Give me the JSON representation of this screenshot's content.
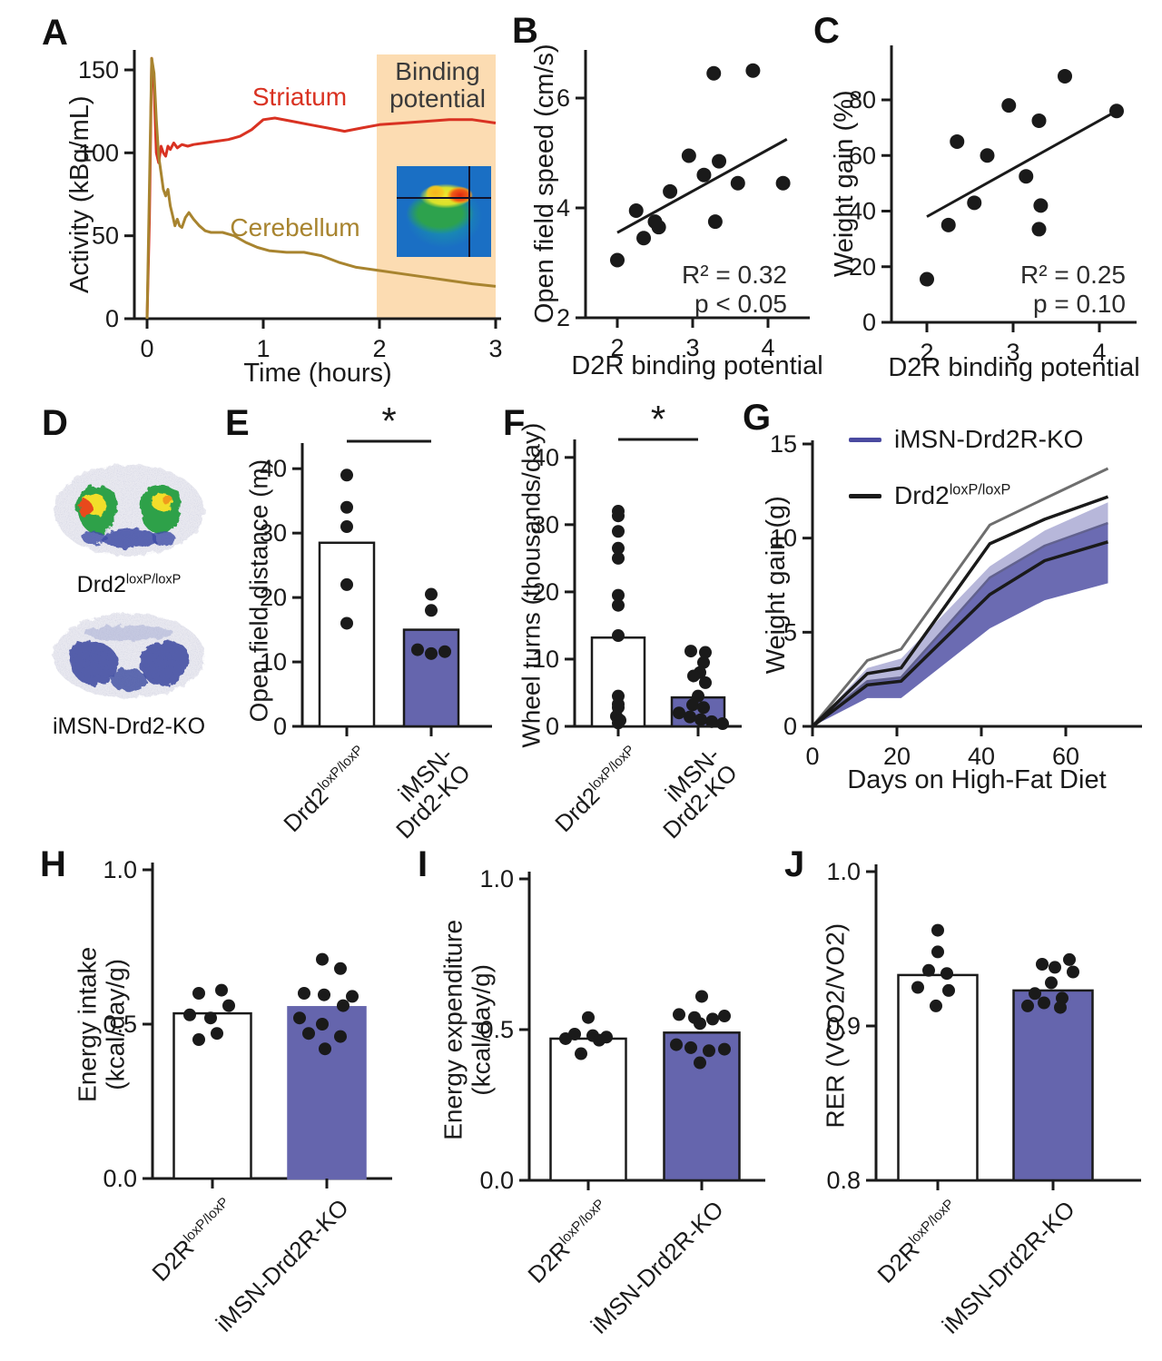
{
  "figure": {
    "background": "#ffffff",
    "colors": {
      "purple": "#6565ad",
      "light_purple": "#b7b7da",
      "orange_band": "#fcdcb2",
      "red": "#d93222",
      "olive": "#a8842f",
      "ink": "#1a1a1a"
    },
    "panels": {
      "A": {
        "letter": "A"
      },
      "B": {
        "letter": "B"
      },
      "C": {
        "letter": "C"
      },
      "D": {
        "letter": "D",
        "images": [
          {
            "name": "autoradiograph-control",
            "label": {
              "base": "Drd2",
              "sup": "loxP/loxP"
            }
          },
          {
            "name": "autoradiograph-ko",
            "label": {
              "text": "iMSN-Drd2-KO"
            }
          }
        ]
      },
      "E": {
        "letter": "E"
      },
      "F": {
        "letter": "F"
      },
      "G": {
        "letter": "G"
      },
      "H": {
        "letter": "H"
      },
      "I": {
        "letter": "I"
      },
      "J": {
        "letter": "J"
      }
    }
  },
  "chart_data": [
    {
      "panel": "A",
      "type": "line",
      "xlabel": "Time (hours)",
      "ylabel": "Activity (kBq/mL)",
      "xlim": [
        0,
        3
      ],
      "ylim": [
        0,
        157
      ],
      "xticks": [
        0,
        1,
        2,
        3
      ],
      "yticks": [
        0,
        50,
        100,
        150
      ],
      "shaded_region": {
        "x0": 2,
        "x1": 3,
        "label_lines": [
          "Binding",
          "potential"
        ],
        "color": "#fcdcb2"
      },
      "series": [
        {
          "name": "Striatum",
          "color": "#d93222",
          "label_xy": [
            290,
            106
          ],
          "x": [
            0,
            0.02,
            0.04,
            0.06,
            0.08,
            0.1,
            0.12,
            0.14,
            0.16,
            0.18,
            0.2,
            0.23,
            0.26,
            0.3,
            0.35,
            0.4,
            0.5,
            0.6,
            0.7,
            0.8,
            0.9,
            1.0,
            1.1,
            1.25,
            1.4,
            1.55,
            1.7,
            1.85,
            2.0,
            2.2,
            2.4,
            2.6,
            2.8,
            3.0
          ],
          "y": [
            0,
            60,
            157,
            140,
            100,
            94,
            104,
            100,
            98,
            104,
            102,
            106,
            103,
            105,
            104,
            105,
            106,
            107,
            108,
            110,
            114,
            120,
            121,
            119,
            117,
            115,
            113,
            115,
            117,
            118,
            119,
            120,
            120,
            118
          ]
        },
        {
          "name": "Cerebellum",
          "color": "#a8842f",
          "label_xy": [
            285,
            250
          ],
          "x": [
            0,
            0.02,
            0.04,
            0.06,
            0.08,
            0.1,
            0.12,
            0.14,
            0.16,
            0.18,
            0.2,
            0.22,
            0.24,
            0.26,
            0.28,
            0.3,
            0.33,
            0.36,
            0.4,
            0.45,
            0.5,
            0.55,
            0.65,
            0.75,
            0.85,
            0.95,
            1.05,
            1.2,
            1.35,
            1.5,
            1.65,
            1.8,
            2.0,
            2.2,
            2.4,
            2.6,
            2.8,
            3.0
          ],
          "y": [
            0,
            80,
            157,
            148,
            120,
            98,
            88,
            78,
            74,
            78,
            68,
            62,
            56,
            60,
            56,
            55,
            61,
            64,
            60,
            56,
            53,
            52,
            52,
            50,
            46,
            43,
            41,
            40,
            40,
            38,
            34,
            31,
            29,
            27,
            25,
            23,
            21,
            19.5
          ]
        }
      ],
      "inset": "pet-scan-heatmap"
    },
    {
      "panel": "B",
      "type": "scatter",
      "xlabel": "D2R binding potential",
      "ylabel": "Open field speed (cm/s)",
      "xticks": [
        2,
        3,
        4
      ],
      "yticks": [
        2,
        4,
        6
      ],
      "xlim": [
        1.8,
        4.4
      ],
      "ylim": [
        2,
        6.8
      ],
      "points": [
        [
          2.0,
          3.05
        ],
        [
          2.25,
          3.95
        ],
        [
          2.35,
          3.45
        ],
        [
          2.5,
          3.75
        ],
        [
          2.55,
          3.65
        ],
        [
          2.7,
          4.3
        ],
        [
          2.95,
          4.95
        ],
        [
          3.15,
          4.6
        ],
        [
          3.28,
          6.45
        ],
        [
          3.35,
          4.85
        ],
        [
          3.3,
          3.75
        ],
        [
          3.6,
          4.45
        ],
        [
          3.8,
          6.5
        ],
        [
          4.2,
          4.45
        ]
      ],
      "trendline": {
        "x1": 2.0,
        "y1": 3.55,
        "x2": 4.25,
        "y2": 5.25
      },
      "annotation": [
        "R² = 0.32",
        "p < 0.05"
      ]
    },
    {
      "panel": "C",
      "type": "scatter",
      "xlabel": "D2R binding potential",
      "ylabel": "Weight gain (%)",
      "xticks": [
        2,
        3,
        4
      ],
      "yticks": [
        0,
        20,
        40,
        60,
        80
      ],
      "xlim": [
        1.8,
        4.4
      ],
      "ylim": [
        0,
        95
      ],
      "points": [
        [
          2.0,
          15.5
        ],
        [
          2.25,
          35
        ],
        [
          2.35,
          65
        ],
        [
          2.55,
          43
        ],
        [
          2.7,
          60
        ],
        [
          2.95,
          78
        ],
        [
          3.15,
          52.5
        ],
        [
          3.3,
          72.5
        ],
        [
          3.32,
          42
        ],
        [
          3.3,
          33.5
        ],
        [
          3.6,
          88.5
        ],
        [
          4.2,
          76
        ]
      ],
      "trendline": {
        "x1": 2.0,
        "y1": 38,
        "x2": 4.2,
        "y2": 76
      },
      "annotation": [
        "R² = 0.25",
        "p = 0.10"
      ]
    },
    {
      "panel": "E",
      "type": "bar",
      "ylabel": "Open field distance (m)",
      "yticks": [
        0,
        10,
        20,
        30,
        40
      ],
      "ylim": [
        0,
        42
      ],
      "significance": "*",
      "groups": [
        {
          "label": {
            "base": "Drd2",
            "sup": "loxP/loxP"
          },
          "bar": 28.5,
          "fill": "#ffffff",
          "points": [
            39,
            34,
            31,
            22,
            16
          ],
          "jitter": [
            0,
            0,
            0,
            0,
            0
          ]
        },
        {
          "label": {
            "lines": [
              "iMSN-",
              "Drd2-KO"
            ]
          },
          "bar": 15,
          "fill": "#6565ad",
          "points": [
            20.5,
            18,
            11.9,
            11.3,
            11.6
          ],
          "jitter": [
            0,
            0,
            -15,
            0,
            15
          ]
        }
      ]
    },
    {
      "panel": "F",
      "type": "bar",
      "ylabel": "Wheel turns (thousands/day)",
      "yticks": [
        0,
        10,
        20,
        30,
        40
      ],
      "ylim": [
        0,
        42
      ],
      "significance": "*",
      "groups": [
        {
          "label": {
            "base": "Drd2",
            "sup": "loxP/loxP"
          },
          "bar": 13.2,
          "fill": "#ffffff",
          "points": [
            32,
            31.3,
            29,
            26.5,
            25,
            19.5,
            18,
            13.5,
            4.5,
            3.3,
            2.8,
            1.5,
            0.9,
            0.5
          ],
          "jitter": [
            0,
            0,
            0,
            0,
            0,
            0,
            0,
            0,
            0,
            0,
            0,
            -2,
            2,
            0
          ]
        },
        {
          "label": {
            "lines": [
              "iMSN-",
              "Drd2-KO"
            ]
          },
          "bar": 4.3,
          "fill": "#6565ad",
          "points": [
            11.2,
            11,
            9.5,
            8,
            7.5,
            6.5,
            4.5,
            3.2,
            2.8,
            2.0,
            1.4,
            1.0,
            0.7,
            0.4
          ],
          "jitter": [
            -8,
            8,
            6,
            2,
            -5,
            8,
            0,
            -6,
            6,
            -21,
            -9,
            3,
            15,
            27
          ]
        }
      ]
    },
    {
      "panel": "G",
      "type": "area-line",
      "xlabel": "Days on High-Fat Diet",
      "ylabel": "Weight gain (g)",
      "xticks": [
        0,
        20,
        40,
        60
      ],
      "yticks": [
        0,
        5,
        10,
        15
      ],
      "xlim": [
        0,
        77
      ],
      "ylim": [
        0,
        15
      ],
      "x": [
        0,
        13,
        21,
        42,
        55,
        70
      ],
      "series": [
        {
          "name": "iMSN-Drd2R-KO",
          "legend_color": "#4a4aa0",
          "mean_color": "#1a1a1a",
          "band_color": "#6b6bb2",
          "mean": [
            0,
            2.2,
            2.4,
            7.0,
            8.8,
            9.8
          ],
          "upper": [
            0,
            3.1,
            3.6,
            8.5,
            10.4,
            11.9
          ],
          "lower": [
            0,
            1.5,
            1.5,
            5.2,
            6.7,
            7.6
          ]
        },
        {
          "name_label": {
            "base": "Drd2",
            "sup": "loxP/loxP"
          },
          "legend_color": "#1a1a1a",
          "mean_color": "#1a1a1a",
          "edge_color": "#6e6e6e",
          "mean": [
            0,
            2.8,
            3.1,
            9.7,
            11.0,
            12.2
          ],
          "upper": [
            0,
            3.5,
            4.1,
            10.7,
            12.1,
            13.7
          ],
          "lower": [
            0,
            2.4,
            2.6,
            7.9,
            9.6,
            10.8
          ]
        }
      ],
      "overlap_color": "#b7b7da",
      "legend_position": "top-left"
    },
    {
      "panel": "H",
      "type": "bar",
      "ylabel_lines": [
        "Energy intake",
        "(kcal/day/g)"
      ],
      "yticks": [
        0,
        0.5,
        1
      ],
      "ytick_labels": [
        "0.0",
        "0.5",
        "1.0"
      ],
      "ylim": [
        0,
        1
      ],
      "groups": [
        {
          "label": {
            "base": "D2R",
            "sup": "loxP/loxP"
          },
          "bar": 0.535,
          "fill": "#ffffff",
          "points": [
            0.6,
            0.61,
            0.56,
            0.53,
            0.52,
            0.47,
            0.45
          ],
          "jitter": [
            -15,
            10,
            18,
            -25,
            -2,
            5,
            -15
          ]
        },
        {
          "label": {
            "text": "iMSN-Drd2R-KO"
          },
          "bar": 0.555,
          "fill": "#6565ad",
          "stroke": "none",
          "points": [
            0.71,
            0.68,
            0.6,
            0.595,
            0.59,
            0.56,
            0.52,
            0.5,
            0.47,
            0.46,
            0.42
          ],
          "jitter": [
            -5,
            15,
            -25,
            -3,
            28,
            18,
            -30,
            -5,
            -20,
            15,
            -2
          ]
        }
      ]
    },
    {
      "panel": "I",
      "type": "bar",
      "ylabel_lines": [
        "Energy expenditure",
        "(kcal/day/g)"
      ],
      "yticks": [
        0,
        0.5,
        1
      ],
      "ytick_labels": [
        "0.0",
        "0.5",
        "1.0"
      ],
      "ylim": [
        0,
        1
      ],
      "groups": [
        {
          "label": {
            "base": "D2R",
            "sup": "loxP/loxP"
          },
          "bar": 0.47,
          "fill": "#ffffff",
          "points": [
            0.54,
            0.485,
            0.48,
            0.475,
            0.47,
            0.465,
            0.42
          ],
          "jitter": [
            0,
            -15,
            5,
            20,
            -25,
            12,
            -8
          ]
        },
        {
          "label": {
            "text": "iMSN-Drd2R-KO"
          },
          "bar": 0.49,
          "fill": "#6565ad",
          "points": [
            0.61,
            0.55,
            0.545,
            0.54,
            0.535,
            0.52,
            0.45,
            0.44,
            0.435,
            0.43,
            0.39
          ],
          "jitter": [
            0,
            -25,
            25,
            -8,
            12,
            -2,
            -28,
            -12,
            25,
            8,
            -2
          ]
        }
      ]
    },
    {
      "panel": "J",
      "type": "bar",
      "ylabel": "RER (VCO2/VO2)",
      "yticks": [
        0.8,
        0.9,
        1.0
      ],
      "ytick_labels": [
        "0.8",
        "0.9",
        "1.0"
      ],
      "ylim": [
        0.8,
        1.0
      ],
      "groups": [
        {
          "label": {
            "base": "D2R",
            "sup": "loxP/loxP"
          },
          "bar": 0.933,
          "fill": "#ffffff",
          "points": [
            0.962,
            0.948,
            0.936,
            0.934,
            0.925,
            0.923,
            0.913
          ],
          "jitter": [
            0,
            0,
            -10,
            10,
            -22,
            12,
            -2
          ]
        },
        {
          "label": {
            "text": "iMSN-Drd2R-KO"
          },
          "bar": 0.923,
          "fill": "#6565ad",
          "points": [
            0.943,
            0.94,
            0.938,
            0.935,
            0.928,
            0.921,
            0.918,
            0.915,
            0.913,
            0.912
          ],
          "jitter": [
            18,
            -12,
            2,
            22,
            -2,
            -20,
            10,
            -10,
            -28,
            8
          ]
        }
      ]
    }
  ]
}
